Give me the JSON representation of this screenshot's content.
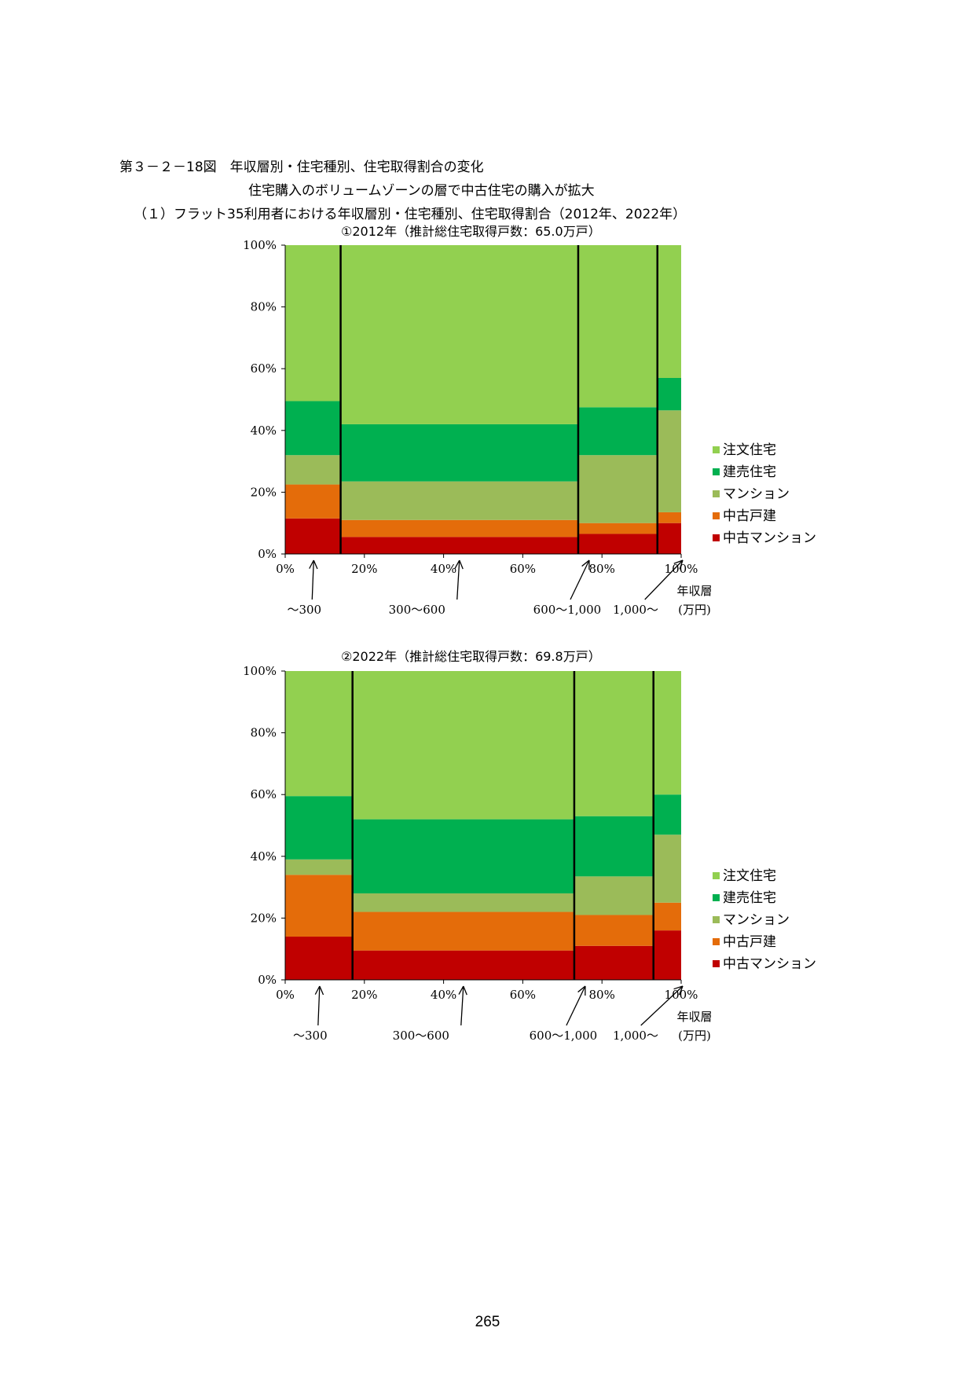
{
  "figure": {
    "title": "第３－２－18図　年収層別・住宅種別、住宅取得割合の変化",
    "subtitle": "住宅購入のボリュームゾーンの層で中古住宅の購入が拡大",
    "section": "（１）フラット35利用者における年収層別・住宅種別、住宅取得割合（2012年、2022年）"
  },
  "page_number": "265",
  "colors": {
    "注文住宅": "#92D050",
    "建売住宅": "#00B050",
    "マンション": "#9BBB59",
    "中古戸建": "#E46C0A",
    "中古マンション": "#C00000"
  },
  "chart_data": [
    {
      "type": "marimekko",
      "title": "①2012年（推計総住宅取得戸数：65.0万戸）",
      "xlabel": "年収層\n(万円)",
      "y_ticks": [
        "0%",
        "20%",
        "40%",
        "60%",
        "80%",
        "100%"
      ],
      "x_ticks": [
        "0%",
        "20%",
        "40%",
        "60%",
        "80%",
        "100%"
      ],
      "ylim": [
        0,
        100
      ],
      "xlim": [
        0,
        100
      ],
      "legend_position": "right",
      "series_order_top_to_bottom": [
        "注文住宅",
        "建売住宅",
        "マンション",
        "中古戸建",
        "中古マンション"
      ],
      "groups": [
        {
          "label": "～300",
          "width": 14,
          "values": {
            "中古マンション": 11.5,
            "中古戸建": 11,
            "マンション": 9.5,
            "建売住宅": 17.5,
            "注文住宅": 50.5
          }
        },
        {
          "label": "300～600",
          "width": 60,
          "values": {
            "中古マンション": 5.5,
            "中古戸建": 5.5,
            "マンション": 12.5,
            "建売住宅": 18.5,
            "注文住宅": 58
          }
        },
        {
          "label": "600～1,000",
          "width": 20,
          "values": {
            "中古マンション": 6.5,
            "中古戸建": 3.5,
            "マンション": 22,
            "建売住宅": 15.5,
            "注文住宅": 52.5
          }
        },
        {
          "label": "1,000～",
          "width": 6,
          "values": {
            "中古マンション": 10,
            "中古戸建": 3.5,
            "マンション": 33,
            "建売住宅": 10.5,
            "注文住宅": 43
          }
        }
      ]
    },
    {
      "type": "marimekko",
      "title": "②2022年（推計総住宅取得戸数：69.8万戸）",
      "xlabel": "年収層\n(万円)",
      "y_ticks": [
        "0%",
        "20%",
        "40%",
        "60%",
        "80%",
        "100%"
      ],
      "x_ticks": [
        "0%",
        "20%",
        "40%",
        "60%",
        "80%",
        "100%"
      ],
      "ylim": [
        0,
        100
      ],
      "xlim": [
        0,
        100
      ],
      "legend_position": "right",
      "series_order_top_to_bottom": [
        "注文住宅",
        "建売住宅",
        "マンション",
        "中古戸建",
        "中古マンション"
      ],
      "groups": [
        {
          "label": "～300",
          "width": 17,
          "values": {
            "中古マンション": 14,
            "中古戸建": 20,
            "マンション": 5,
            "建売住宅": 20.5,
            "注文住宅": 40.5
          }
        },
        {
          "label": "300～600",
          "width": 56,
          "values": {
            "中古マンション": 9.5,
            "中古戸建": 12.5,
            "マンション": 6,
            "建売住宅": 24,
            "注文住宅": 48
          }
        },
        {
          "label": "600～1,000",
          "width": 20,
          "values": {
            "中古マンション": 11,
            "中古戸建": 10,
            "マンション": 12.5,
            "建売住宅": 19.5,
            "注文住宅": 47
          }
        },
        {
          "label": "1,000～",
          "width": 7,
          "values": {
            "中古マンション": 16,
            "中古戸建": 9,
            "マンション": 22,
            "建売住宅": 13,
            "注文住宅": 40
          }
        }
      ]
    }
  ]
}
